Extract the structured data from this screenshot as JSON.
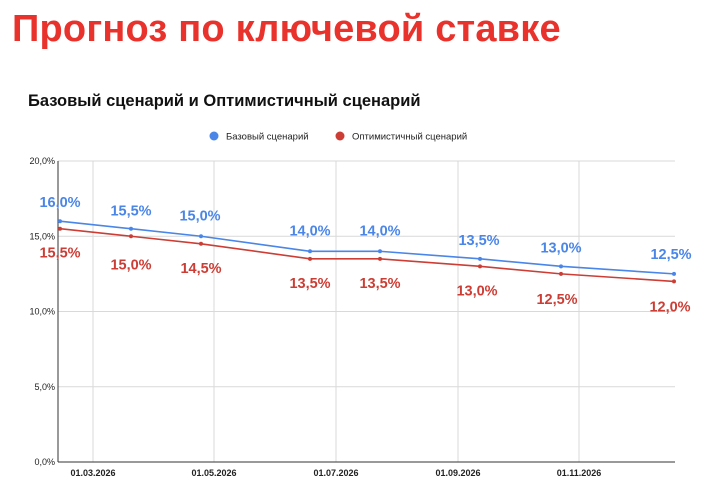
{
  "headline": "Прогноз по ключевой ставке",
  "chart_data": {
    "type": "line",
    "title": "Базовый сценарий и Оптимистичный сценарий",
    "xlabel": "",
    "ylabel": "",
    "x_tick_labels": [
      "01.03.2026",
      "01.05.2026",
      "01.07.2026",
      "01.09.2026",
      "01.11.2026"
    ],
    "y_tick_labels": [
      "0,0%",
      "5,0%",
      "10,0%",
      "15,0%",
      "20,0%"
    ],
    "ylim": [
      0,
      20
    ],
    "grid": true,
    "legend": "top-center",
    "series": [
      {
        "name": "Базовый сценарий",
        "color": "#4a86e8",
        "values": [
          16.0,
          15.5,
          15.0,
          14.0,
          14.0,
          13.5,
          13.0,
          12.5
        ],
        "labels": [
          "16,0%",
          "15,5%",
          "15,0%",
          "14,0%",
          "14,0%",
          "13,5%",
          "13,0%",
          "12,5%"
        ]
      },
      {
        "name": "Оптимистичный сценарий",
        "color": "#cc3e35",
        "values": [
          15.5,
          15.0,
          14.5,
          13.5,
          13.5,
          13.0,
          12.5,
          12.0
        ],
        "labels": [
          "15,5%",
          "15,0%",
          "14,5%",
          "13,5%",
          "13,5%",
          "13,0%",
          "12,5%",
          "12,0%"
        ]
      }
    ]
  }
}
